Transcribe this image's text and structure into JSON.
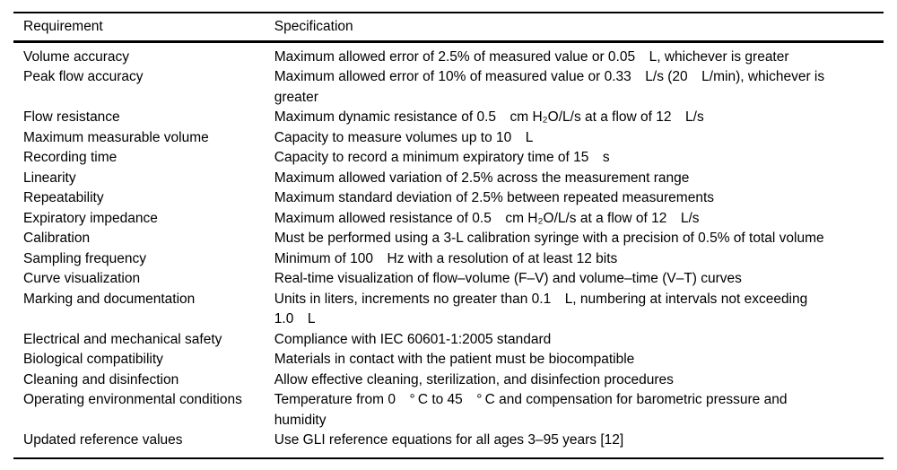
{
  "table": {
    "columns": [
      "Requirement",
      "Specification"
    ],
    "rows": [
      {
        "requirement": "Volume accuracy",
        "specification": "Maximum allowed error of 2.5% of measured value or 0.05 L, whichever is greater"
      },
      {
        "requirement": "Peak flow accuracy",
        "specification": "Maximum allowed error of 10% of measured value or 0.33 L/s (20 L/min), whichever is greater"
      },
      {
        "requirement": "Flow resistance",
        "specification": "Maximum dynamic resistance of 0.5 cm H₂O/L/s at a flow of 12 L/s"
      },
      {
        "requirement": "Maximum measurable volume",
        "specification": "Capacity to measure volumes up to 10 L"
      },
      {
        "requirement": "Recording time",
        "specification": "Capacity to record a minimum expiratory time of 15 s"
      },
      {
        "requirement": "Linearity",
        "specification": "Maximum allowed variation of 2.5% across the measurement range"
      },
      {
        "requirement": "Repeatability",
        "specification": "Maximum standard deviation of 2.5% between repeated measurements"
      },
      {
        "requirement": "Expiratory impedance",
        "specification": "Maximum allowed resistance of 0.5 cm H₂O/L/s at a flow of 12 L/s"
      },
      {
        "requirement": "Calibration",
        "specification": "Must be performed using a 3-L calibration syringe with a precision of 0.5% of total volume"
      },
      {
        "requirement": "Sampling frequency",
        "specification": "Minimum of 100 Hz with a resolution of at least 12 bits"
      },
      {
        "requirement": "Curve visualization",
        "specification": "Real-time visualization of flow–volume (F–V) and volume–time (V–T) curves"
      },
      {
        "requirement": "Marking and documentation",
        "specification": "Units in liters, increments no greater than 0.1 L, numbering at intervals not exceeding 1.0 L"
      },
      {
        "requirement": "Electrical and mechanical safety",
        "specification": "Compliance with IEC 60601-1:2005 standard"
      },
      {
        "requirement": "Biological compatibility",
        "specification": "Materials in contact with the patient must be biocompatible"
      },
      {
        "requirement": "Cleaning and disinfection",
        "specification": "Allow effective cleaning, sterilization, and disinfection procedures"
      },
      {
        "requirement": "Operating environmental conditions",
        "specification": "Temperature from 0 ° C to 45 ° C and compensation for barometric pressure and humidity"
      },
      {
        "requirement": "Updated reference values",
        "specification": "Use GLI reference equations for all ages 3–95 years [12]"
      }
    ]
  }
}
